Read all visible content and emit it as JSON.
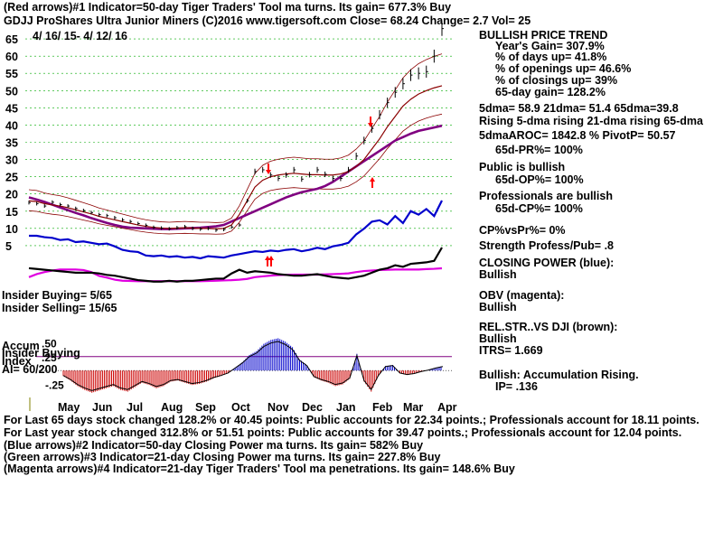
{
  "header": {
    "line1": "(Red arrows)#1 Indicator=50-day Tiger Traders' Tool ma turns. Its gain= 677.3% Buy",
    "line2": "GDJJ  ProShares Ultra Junior Miners  (C)2016 www.tigersoft.com   Close=  68.24  Change= 2.7 Vol= 25",
    "date_range": "4/ 16/ 15-  4/ 12/ 16"
  },
  "left_labels": {
    "insider_buying": "Insider Buying= 5/65",
    "insider_selling": "Insider Selling= 15/65",
    "accum": "Accum",
    "insider_buying2": "Insider Buying",
    "index": "Index",
    "ai": "AI= 60/200"
  },
  "right_panel": {
    "trend_title": "BULLISH PRICE TREND",
    "years_gain": "Year's Gain= 307.9%",
    "days_up": "% of days up= 41.8%",
    "openings_up": "% of openings up= 46.6%",
    "closings_up": "% of closings up= 39%",
    "gain_65": "65-day gain= 128.2%",
    "dma": "5dma= 58.9 21dma= 51.4 65dma=39.8",
    "rising": "Rising 5-dma rising 21-dma rising 65-dma",
    "aroc": "5dmaAROC= 1842.8 %  PivotP= 50.57",
    "pr": "65d-PR%= 100%",
    "public": "Public is bullish",
    "op": "65d-OP%= 100%",
    "professionals": "Professionals are bullish",
    "cp": "65d-CP%= 100%",
    "cpvspr": "CP%vsPr%=  0%",
    "strength": "Strength Profess/Pub= .8",
    "closing_power": "CLOSING POWER (blue):",
    "cp_bullish": "Bullish",
    "obv": "OBV (magenta):",
    "obv_bullish": "Bullish",
    "relstr": "REL.STR..VS DJI (brown):",
    "relstr_bullish": "Bullish",
    "itrs": "ITRS= 1.669",
    "accum_rising": "Bullish: Accumulation Rising.",
    "ip": "IP=  .136"
  },
  "footer": {
    "line1": "For Last 65 days stock changed  128.2% or  40.45 points:  Public accounts for  22.34 points.;  Professionals account for  18.11 points.",
    "line2": "For Last year stock changed  312.8% or  51.51 points:  Public accounts for  39.47 points.;  Professionals account for  12.04 points.",
    "line3": "(Blue arrows)#2 Indicator=50-day Closing Power ma turns. Its gain= 582% Buy",
    "line4": "(Green arrows)#3 Indicator=21-day Closing Power ma turns. Its gain= 227.8% Buy",
    "line5": "(Magenta arrows)#4 Indicator=21-day Tiger Traders' Tool ma penetrations. Its gain= 148.6% Buy"
  },
  "colors": {
    "price": "#000000",
    "ma_brown": "#8b0000",
    "ma_purple": "#800080",
    "closing_power": "#0000cc",
    "obv": "#e000e0",
    "arrow_red": "#ff0000",
    "accum_pos": "#0000cc",
    "accum_neg": "#cc0000",
    "grid": "#00aa00"
  },
  "chart_data": {
    "type": "line",
    "title": "GDJJ ProShares Ultra Junior Miners",
    "date_range": "4/16/15 - 4/12/16",
    "x_labels": [
      "May",
      "Jun",
      "Jul",
      "Aug",
      "Sep",
      "Oct",
      "Nov",
      "Dec",
      "Jan",
      "Feb",
      "Mar",
      "Apr"
    ],
    "y_ticks": [
      5,
      10,
      15,
      20,
      25,
      30,
      35,
      40,
      45,
      50,
      55,
      60,
      65
    ],
    "ylim": [
      0,
      70
    ],
    "accum_ticks": [
      ".50",
      ".25",
      "-.25"
    ],
    "accum_ylim": [
      -0.42,
      0.62
    ],
    "series": [
      {
        "name": "Price",
        "color": "#000000",
        "values": [
          17.5,
          17.2,
          16.5,
          17.6,
          16.9,
          16.5,
          15.8,
          15.2,
          14.6,
          14.0,
          13.7,
          13.1,
          12.5,
          12.0,
          11.4,
          10.9,
          10.3,
          10.1,
          9.9,
          10.2,
          10.5,
          10.0,
          9.8,
          10.0,
          9.5,
          9.7,
          10.4,
          11.0,
          18.0,
          26.5,
          27.0,
          25.5,
          24.5,
          25.5,
          27.0,
          24.3,
          25.6,
          27.0,
          25.7,
          24.5,
          24.5,
          27.0,
          31.0,
          35.5,
          39.0,
          43.0,
          46.5,
          49.5,
          52.0,
          54.5,
          55.0,
          55.5,
          60.0,
          68.0
        ]
      },
      {
        "name": "65-dma",
        "color": "#800080",
        "values": [
          19.0,
          18.4,
          17.7,
          16.9,
          16.1,
          15.3,
          14.5,
          13.8,
          13.0,
          12.3,
          11.6,
          11.0,
          10.5,
          10.2,
          10.1,
          10.0,
          9.9,
          9.8,
          9.8,
          9.9,
          10.0,
          10.1,
          10.2,
          10.4,
          10.6,
          11.0,
          12.0,
          13.0,
          14.0,
          15.0,
          16.0,
          17.0,
          18.0,
          19.0,
          19.8,
          20.5,
          21.0,
          21.5,
          22.3,
          23.5,
          25.0,
          26.5,
          28.0,
          29.5,
          31.0,
          32.5,
          34.0,
          35.5,
          36.5,
          37.5,
          38.3,
          38.8,
          39.3,
          39.8
        ]
      },
      {
        "name": "21-dma",
        "color": "#8b0000",
        "values": [
          18.0,
          17.8,
          17.2,
          16.8,
          16.5,
          16.0,
          15.4,
          14.8,
          14.2,
          13.5,
          13.0,
          12.5,
          12.0,
          11.5,
          11.0,
          10.6,
          10.3,
          10.1,
          10.0,
          10.1,
          10.2,
          10.1,
          10.0,
          10.0,
          9.9,
          10.0,
          11.0,
          14.0,
          18.0,
          22.0,
          24.0,
          25.0,
          25.5,
          25.8,
          26.0,
          25.8,
          25.6,
          25.6,
          25.5,
          25.5,
          25.8,
          26.5,
          28.0,
          30.0,
          33.0,
          36.0,
          39.5,
          42.5,
          45.5,
          47.5,
          49.0,
          50.0,
          50.8,
          51.4
        ]
      },
      {
        "name": "Closing Power",
        "color": "#0000cc",
        "values": [
          0.5,
          0.5,
          0.48,
          0.47,
          0.44,
          0.45,
          0.41,
          0.42,
          0.4,
          0.38,
          0.39,
          0.35,
          0.3,
          0.28,
          0.27,
          0.22,
          0.21,
          0.22,
          0.2,
          0.21,
          0.19,
          0.2,
          0.18,
          0.21,
          0.2,
          0.19,
          0.22,
          0.24,
          0.26,
          0.28,
          0.27,
          0.29,
          0.28,
          0.3,
          0.31,
          0.28,
          0.3,
          0.33,
          0.31,
          0.35,
          0.37,
          0.4,
          0.52,
          0.6,
          0.7,
          0.72,
          0.66,
          0.78,
          0.68,
          0.85,
          0.8,
          0.88,
          0.78,
          1.0
        ]
      },
      {
        "name": "OBV",
        "color": "#e000e0",
        "values": [
          0.4,
          0.52,
          0.6,
          0.66,
          0.7,
          0.7,
          0.7,
          0.68,
          0.6,
          0.45,
          0.38,
          0.3,
          0.26,
          0.25,
          0.24,
          0.24,
          0.24,
          0.24,
          0.24,
          0.24,
          0.24,
          0.24,
          0.24,
          0.25,
          0.26,
          0.27,
          0.28,
          0.3,
          0.33,
          0.4,
          0.43,
          0.46,
          0.48,
          0.49,
          0.5,
          0.5,
          0.5,
          0.5,
          0.51,
          0.52,
          0.53,
          0.55,
          0.6,
          0.64,
          0.66,
          0.68,
          0.69,
          0.7,
          0.7,
          0.7,
          0.7,
          0.72,
          0.73,
          0.75
        ]
      },
      {
        "name": "Tiger Closing Power (black)",
        "color": "#000000",
        "values": [
          0.72,
          0.71,
          0.7,
          0.69,
          0.68,
          0.67,
          0.66,
          0.66,
          0.66,
          0.65,
          0.63,
          0.62,
          0.6,
          0.58,
          0.56,
          0.55,
          0.54,
          0.54,
          0.55,
          0.54,
          0.55,
          0.55,
          0.56,
          0.57,
          0.58,
          0.58,
          0.65,
          0.7,
          0.66,
          0.68,
          0.67,
          0.66,
          0.64,
          0.63,
          0.62,
          0.62,
          0.63,
          0.64,
          0.62,
          0.6,
          0.59,
          0.58,
          0.6,
          0.62,
          0.66,
          0.7,
          0.72,
          0.76,
          0.74,
          0.78,
          0.79,
          0.8,
          0.82,
          1.0
        ]
      },
      {
        "name": "Accumulation Index",
        "color": "#8b0000",
        "values": [
          -0.1,
          -0.18,
          -0.28,
          -0.35,
          -0.4,
          -0.36,
          -0.32,
          -0.28,
          -0.35,
          -0.38,
          -0.3,
          -0.22,
          -0.26,
          -0.32,
          -0.28,
          -0.2,
          -0.18,
          -0.22,
          -0.26,
          -0.24,
          -0.2,
          -0.14,
          -0.1,
          -0.05,
          0.05,
          0.15,
          0.28,
          0.35,
          0.48,
          0.55,
          0.58,
          0.52,
          0.42,
          0.2,
          0.1,
          -0.12,
          -0.18,
          -0.22,
          -0.28,
          -0.25,
          -0.15,
          0.3,
          -0.2,
          -0.38,
          -0.1,
          0.08,
          0.1,
          -0.05,
          -0.08,
          -0.06,
          -0.02,
          0.01,
          0.05,
          0.08
        ]
      }
    ]
  }
}
